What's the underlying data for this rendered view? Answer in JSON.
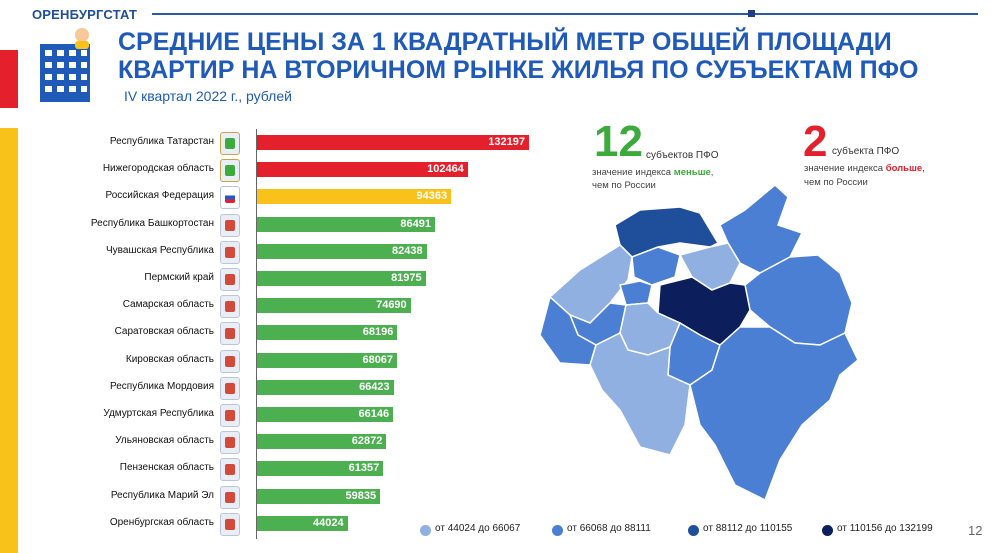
{
  "header": {
    "brand": "ОРЕНБУРГСТАТ"
  },
  "title": {
    "line1": "СРЕДНИЕ ЦЕНЫ ЗА 1 КВАДРАТНЫЙ МЕТР ОБЩЕЙ ПЛОЩАДИ",
    "line2": "КВАРТИР НА ВТОРИЧНОМ РЫНКЕ ЖИЛЬЯ ПО СУБЪЕКТАМ ПФО"
  },
  "subtitle": "IV квартал 2022 г., рублей",
  "colors": {
    "red": "#e3202c",
    "yellow": "#f8c21b",
    "green": "#4caf50",
    "map_light": "#8fb0e0",
    "map_mid": "#4a7fd4",
    "map_dark": "#1f4f9a",
    "map_darkest": "#0c1f5c"
  },
  "chart_data": {
    "type": "bar",
    "orientation": "horizontal",
    "title": "СРЕДНИЕ ЦЕНЫ ЗА 1 КВАДРАТНЫЙ МЕТР ОБЩЕЙ ПЛОЩАДИ КВАРТИР НА ВТОРИЧНОМ РЫНКЕ ЖИЛЬЯ ПО СУБЪЕКТАМ ПФО",
    "subtitle": "IV квартал 2022 г., рублей",
    "categories": [
      "Республика Татарстан",
      "Нижегородская область",
      "Российская Федерация",
      "Республика Башкортостан",
      "Чувашская Республика",
      "Пермский край",
      "Самарская область",
      "Саратовская область",
      "Кировская область",
      "Республика Мордовия",
      "Удмуртская Республика",
      "Ульяновская область",
      "Пензенская область",
      "Республика Марий Эл",
      "Оренбургская область"
    ],
    "values": [
      132197,
      102464,
      94363,
      86491,
      82438,
      81975,
      74690,
      68196,
      68067,
      66423,
      66146,
      62872,
      61357,
      59835,
      44024
    ],
    "bar_colors": [
      "red",
      "red",
      "yellow",
      "green",
      "green",
      "green",
      "green",
      "green",
      "green",
      "green",
      "green",
      "green",
      "green",
      "green",
      "green"
    ],
    "xlim": [
      0,
      132197
    ]
  },
  "stats": {
    "left": {
      "number": "12",
      "unit": "субъектов ПФО",
      "desc_prefix": "значение индекса ",
      "desc_emphasis": "меньше",
      "desc_suffix": ",",
      "desc_line2": "чем по России"
    },
    "right": {
      "number": "2",
      "unit": "субъекта ПФО",
      "desc_prefix": "значение индекса ",
      "desc_emphasis": "больше",
      "desc_suffix": ",",
      "desc_line2": "чем по России"
    }
  },
  "map_legend": [
    {
      "label": "от 44024 до 66067",
      "color": "#8fb0e0"
    },
    {
      "label": "от 66068 до 88111",
      "color": "#4a7fd4"
    },
    {
      "label": "от 88112 до 110155",
      "color": "#1f4f9a"
    },
    {
      "label": "от 110156 до 132199",
      "color": "#0c1f5c"
    }
  ],
  "page_number": "12"
}
